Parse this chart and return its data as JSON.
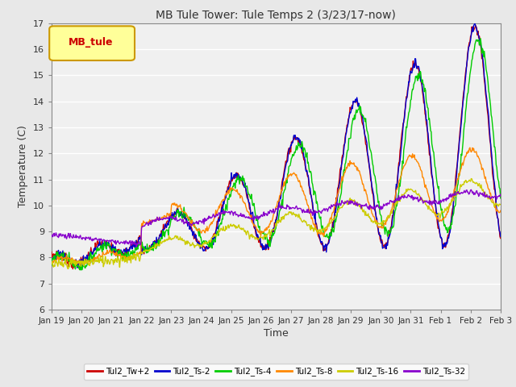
{
  "title": "MB Tule Tower: Tule Temps 2 (3/23/17-now)",
  "xlabel": "Time",
  "ylabel": "Temperature (C)",
  "ylim": [
    6.0,
    17.0
  ],
  "yticks": [
    6.0,
    7.0,
    8.0,
    9.0,
    10.0,
    11.0,
    12.0,
    13.0,
    14.0,
    15.0,
    16.0,
    17.0
  ],
  "bg_color": "#e8e8e8",
  "plot_bg_color": "#f0f0f0",
  "grid_color": "#ffffff",
  "legend_label": "MB_tule",
  "legend_bg": "#ffff99",
  "legend_border": "#cc9900",
  "series_labels": [
    "Tul2_Tw+2",
    "Tul2_Ts-2",
    "Tul2_Ts-4",
    "Tul2_Ts-8",
    "Tul2_Ts-16",
    "Tul2_Ts-32"
  ],
  "series_colors": [
    "#cc0000",
    "#0000cc",
    "#00cc00",
    "#ff8800",
    "#cccc00",
    "#8800cc"
  ],
  "xtick_labels": [
    "Jan 19",
    "Jan 20",
    "Jan 21",
    "Jan 22",
    "Jan 23",
    "Jan 24",
    "Jan 25",
    "Jan 26",
    "Jan 27",
    "Jan 28",
    "Jan 29",
    "Jan 30",
    "Jan 31",
    "Feb 1",
    "Feb 2",
    "Feb 3"
  ],
  "n_points": 720
}
